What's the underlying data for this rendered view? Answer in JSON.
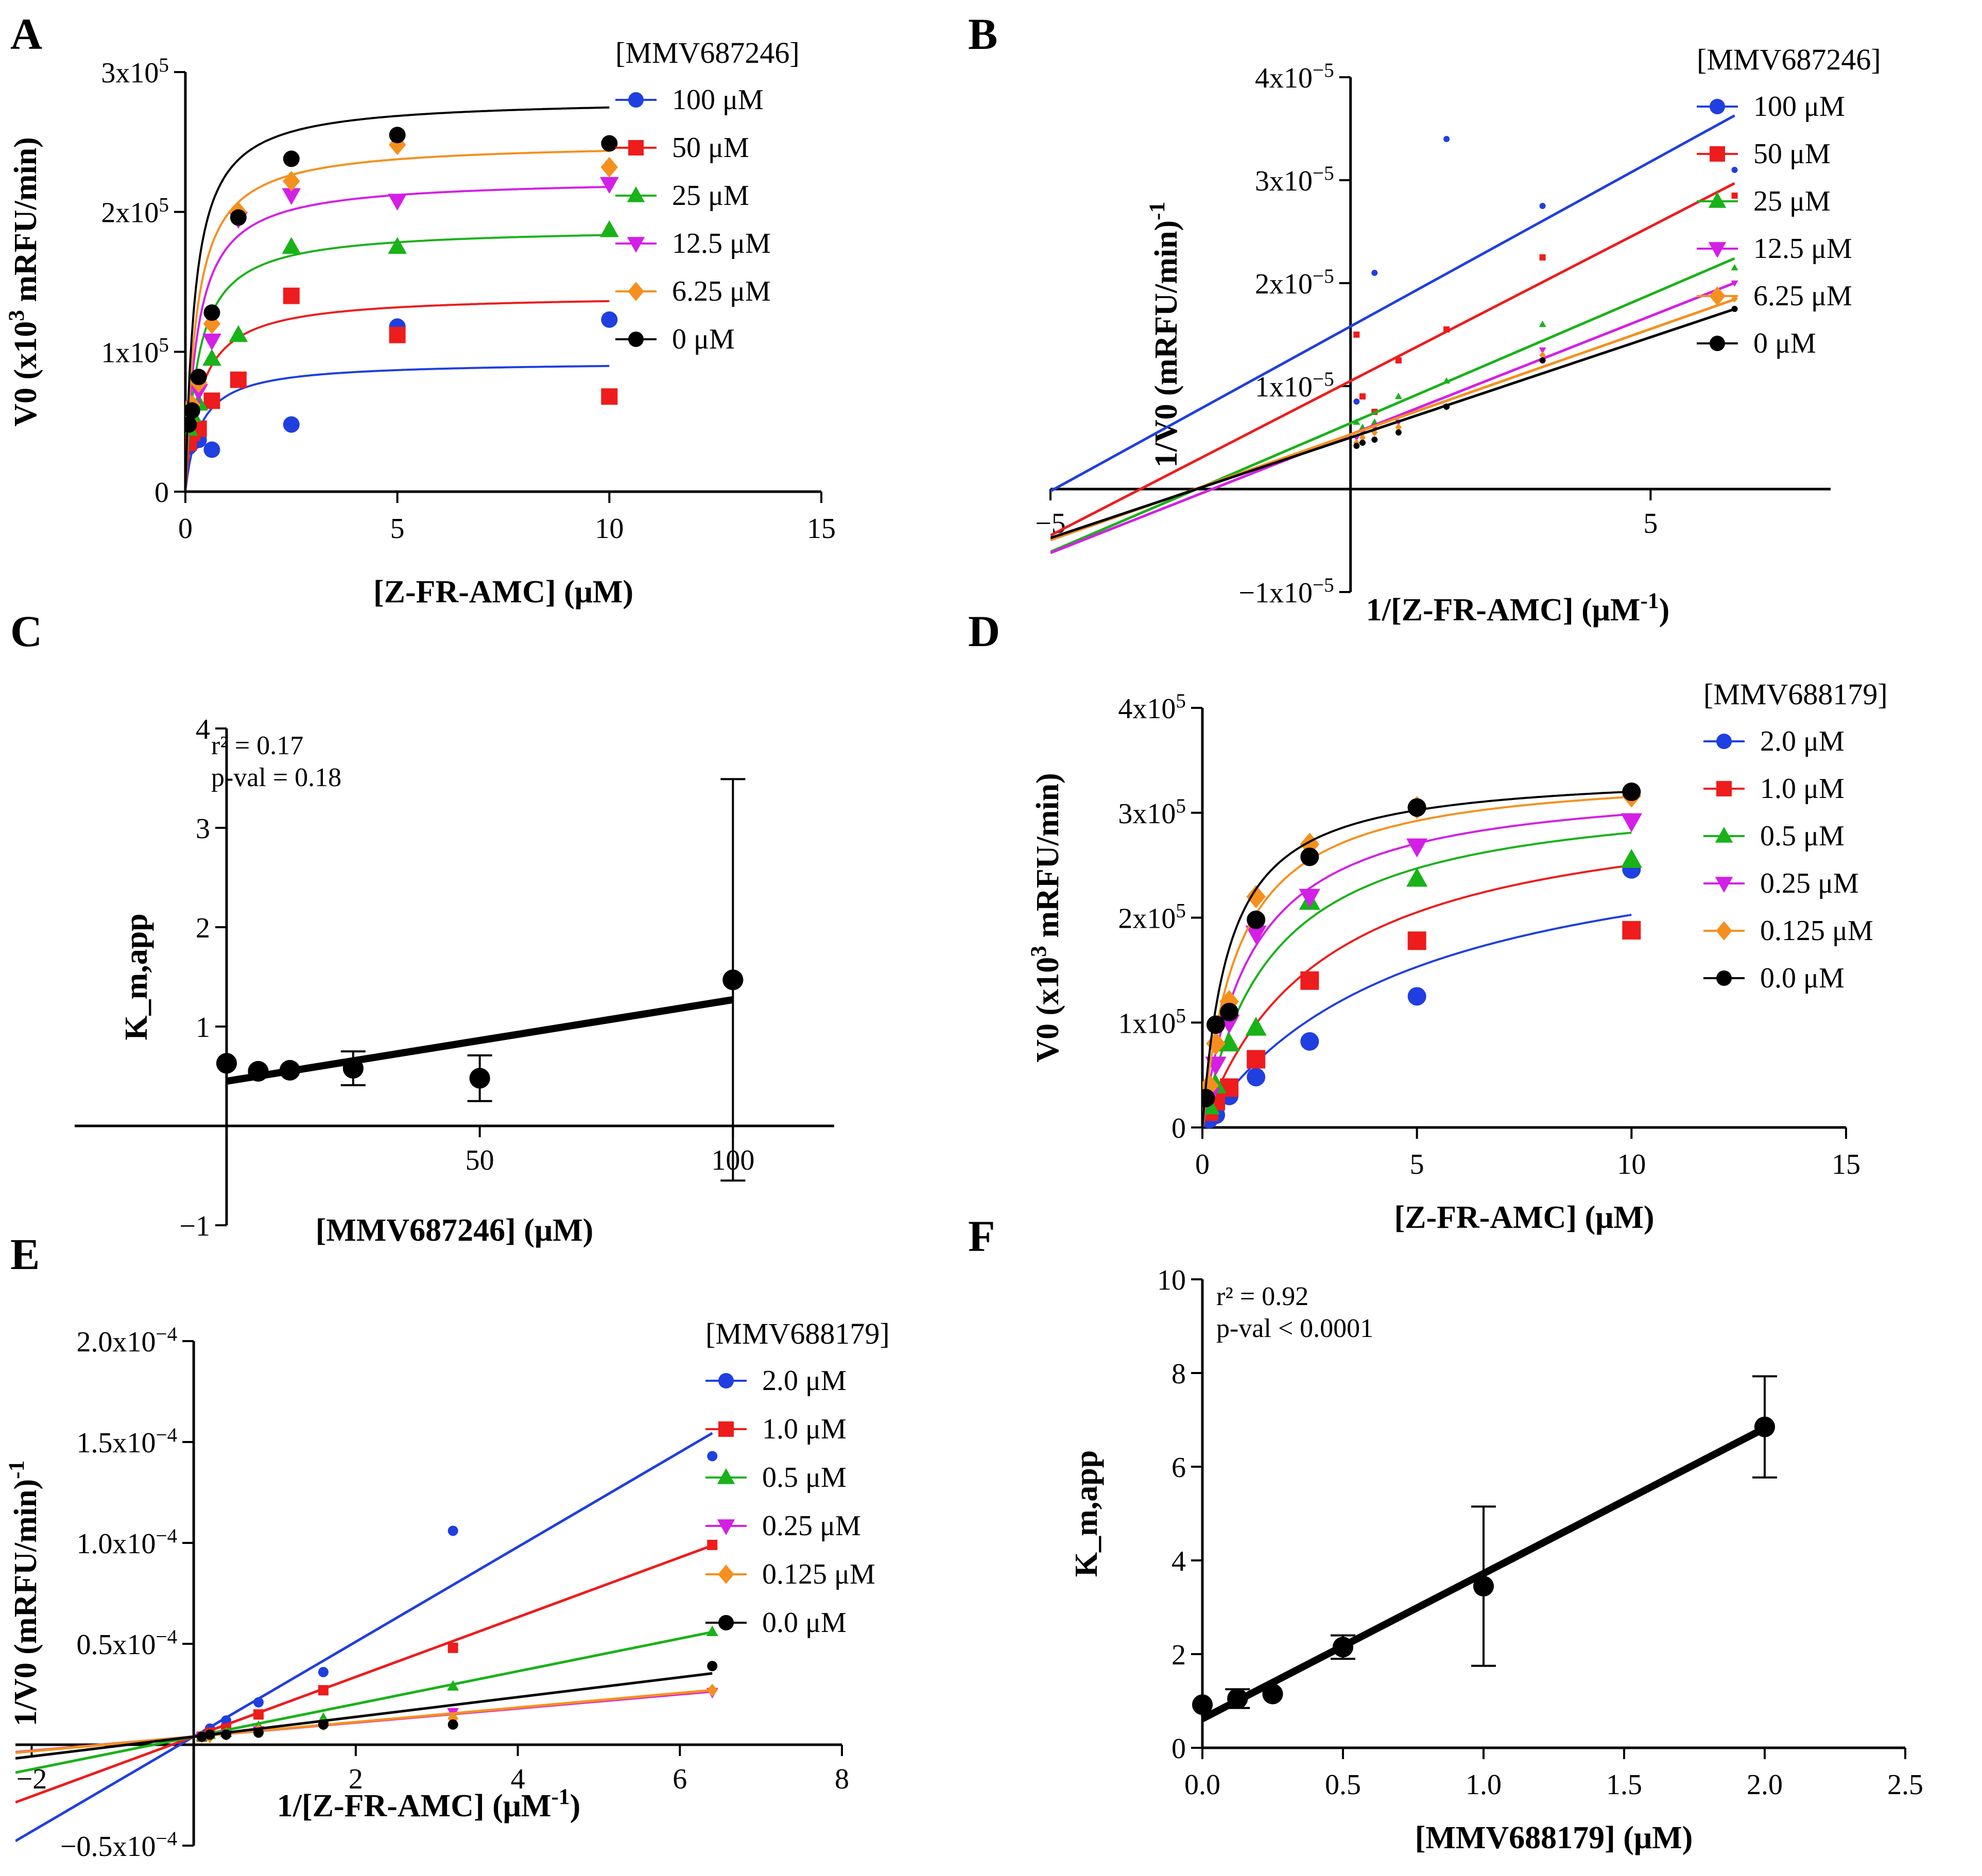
{
  "panels": [
    {
      "label": "A",
      "chart_data": {
        "type": "scatter",
        "title": "",
        "xlabel": "[Z-FR-AMC] (μM)",
        "ylabel": "V0 (x10^3 mRFU/min)",
        "xlim": [
          0,
          15
        ],
        "ylim": [
          0,
          300000
        ],
        "xticks": [
          0,
          5,
          10,
          15
        ],
        "xticklabels": [
          "0",
          "5",
          "10",
          "15"
        ],
        "yticks": [
          0,
          100000,
          200000,
          300000
        ],
        "yticklabels": [
          "0",
          "1x10^5",
          "2x10^5",
          "3x10^5"
        ],
        "legend_title": "[MMV687246]",
        "fit": "michaelis-menten",
        "series": [
          {
            "name": "100 μM",
            "color": "#1f3fe0",
            "marker": "circle",
            "x": [
              0.078,
              0.156,
              0.3125,
              0.625,
              2.5,
              5,
              10
            ],
            "y": [
              32000,
              35000,
              37000,
              30000,
              48000,
              118000,
              123000
            ],
            "vmax": 93000,
            "km": 0.35
          },
          {
            "name": "50 μM",
            "color": "#ee1c1c",
            "marker": "square",
            "x": [
              0.078,
              0.156,
              0.3125,
              0.625,
              1.25,
              2.5,
              5,
              10
            ],
            "y": [
              35000,
              42000,
              45000,
              65000,
              80000,
              140000,
              112000,
              68000
            ],
            "vmax": 141000,
            "km": 0.35
          },
          {
            "name": "25 μM",
            "color": "#19b219",
            "marker": "triangle-up",
            "x": [
              0.078,
              0.156,
              0.3125,
              0.625,
              1.25,
              2.5,
              5,
              10
            ],
            "y": [
              45000,
              55000,
              63000,
              95000,
              112000,
              175000,
              175000,
              187000
            ],
            "vmax": 189000,
            "km": 0.3
          },
          {
            "name": "12.5 μM",
            "color": "#d41fe6",
            "marker": "triangle-down",
            "x": [
              0.078,
              0.156,
              0.3125,
              0.625,
              1.25,
              2.5,
              5,
              10
            ],
            "y": [
              55000,
              60000,
              72000,
              108000,
              195000,
              212000,
              208000,
              220000
            ],
            "vmax": 224000,
            "km": 0.28
          },
          {
            "name": "6.25 μM",
            "color": "#f5901e",
            "marker": "diamond",
            "x": [
              0.078,
              0.156,
              0.3125,
              0.625,
              1.25,
              2.5,
              5,
              10
            ],
            "y": [
              50000,
              62000,
              78000,
              120000,
              200000,
              222000,
              248000,
              232000
            ],
            "vmax": 250000,
            "km": 0.26
          },
          {
            "name": "0 μM",
            "color": "#000000",
            "marker": "circle",
            "x": [
              0.078,
              0.156,
              0.3125,
              0.625,
              1.25,
              2.5,
              5,
              10
            ],
            "y": [
              48000,
              58000,
              82000,
              128000,
              196000,
              238000,
              255000,
              249000
            ],
            "vmax": 281000,
            "km": 0.23
          }
        ]
      }
    },
    {
      "label": "B",
      "chart_data": {
        "type": "scatter",
        "title": "",
        "xlabel": "1/[Z-FR-AMC] (μM^-1)",
        "ylabel": "1/V0 (mRFU/min)^-1",
        "xlim": [
          -5,
          8
        ],
        "ylim": [
          -1e-05,
          4e-05
        ],
        "xticks": [
          -5,
          5
        ],
        "xticklabels": [
          "−5",
          "5"
        ],
        "yticks": [
          -1e-05,
          1e-05,
          2e-05,
          3e-05,
          4e-05
        ],
        "yticklabels": [
          "−1x10^−5",
          "1x10^−5",
          "2x10^−5",
          "3x10^−5",
          "4x10^−5"
        ],
        "legend_title": "[MMV687246]",
        "fit": "linear",
        "series": [
          {
            "name": "100 μM",
            "color": "#1f3fe0",
            "marker": "circle",
            "x": [
              0.1,
              0.2,
              0.4,
              1.6,
              3.2,
              6.4
            ],
            "y": [
              8.5e-06,
              9e-06,
              2.1e-05,
              3.4e-05,
              2.75e-05,
              3.1e-05
            ],
            "slope": 3.2e-06,
            "intercept": 1.58e-05
          },
          {
            "name": "50 μM",
            "color": "#ee1c1c",
            "marker": "square",
            "x": [
              0.1,
              0.2,
              0.4,
              0.8,
              1.6,
              3.2,
              6.4
            ],
            "y": [
              1.5e-05,
              9e-06,
              7.5e-06,
              1.25e-05,
              1.55e-05,
              2.25e-05,
              2.85e-05
            ],
            "slope": 3e-06,
            "intercept": 1.05e-05
          },
          {
            "name": "25 μM",
            "color": "#19b219",
            "marker": "triangle-up",
            "x": [
              0.1,
              0.2,
              0.4,
              0.8,
              1.6,
              3.2,
              6.4
            ],
            "y": [
              6.5e-06,
              6e-06,
              6.5e-06,
              9e-06,
              1.05e-05,
              1.6e-05,
              2.15e-05
            ],
            "slope": 2.5e-06,
            "intercept": 6.4e-06
          },
          {
            "name": "12.5 μM",
            "color": "#d41fe6",
            "marker": "triangle-down",
            "x": [
              0.1,
              0.2,
              0.4,
              0.8,
              1.6,
              3.2,
              6.4
            ],
            "y": [
              5e-06,
              5.5e-06,
              6e-06,
              6.5e-06,
              8e-06,
              1.35e-05,
              2e-05
            ],
            "slope": 2.3e-06,
            "intercept": 5.3e-06
          },
          {
            "name": "6.25 μM",
            "color": "#f5901e",
            "marker": "diamond",
            "x": [
              0.1,
              0.2,
              0.4,
              0.8,
              1.6,
              3.2,
              6.4
            ],
            "y": [
              4.5e-06,
              5e-06,
              5.5e-06,
              6e-06,
              8e-06,
              1.3e-05,
              1.85e-05
            ],
            "slope": 2.05e-06,
            "intercept": 5.3e-06
          },
          {
            "name": "0 μM",
            "color": "#000000",
            "marker": "circle",
            "x": [
              0.1,
              0.2,
              0.4,
              0.8,
              1.6,
              3.2,
              6.4
            ],
            "y": [
              4.2e-06,
              4.5e-06,
              4.8e-06,
              5.5e-06,
              8e-06,
              1.25e-05,
              1.75e-05
            ],
            "slope": 1.95e-06,
            "intercept": 5e-06
          }
        ]
      }
    },
    {
      "label": "C",
      "chart_data": {
        "type": "scatter",
        "title": "",
        "xlabel": "[MMV687246] (μM)",
        "ylabel": "K_m,app",
        "xlim": [
          -30,
          120
        ],
        "ylim": [
          -1,
          4
        ],
        "xticks": [
          50,
          100
        ],
        "xticklabels": [
          "50",
          "100"
        ],
        "yticks": [
          -1,
          1,
          2,
          3,
          4
        ],
        "yticklabels": [
          "−1",
          "1",
          "2",
          "3",
          "4"
        ],
        "stats": {
          "r2": "r² = 0.17",
          "pval": "p-val = 0.18"
        },
        "fit": {
          "slope": 0.0082,
          "intercept": 0.45,
          "x_range": [
            0,
            100
          ]
        },
        "series": [
          {
            "name": "Km,app",
            "color": "#000000",
            "marker": "circle",
            "x": [
              0,
              6.25,
              12.5,
              25,
              50,
              100
            ],
            "y": [
              0.63,
              0.55,
              0.56,
              0.58,
              0.48,
              1.47
            ],
            "err": [
              0,
              0,
              0,
              0.17,
              0.23,
              2.02
            ]
          }
        ]
      }
    },
    {
      "label": "D",
      "chart_data": {
        "type": "scatter",
        "title": "",
        "xlabel": "[Z-FR-AMC] (μM)",
        "ylabel": "V0 (x10^3 mRFU/min)",
        "xlim": [
          0,
          15
        ],
        "ylim": [
          0,
          400000
        ],
        "xticks": [
          0,
          5,
          10,
          15
        ],
        "xticklabels": [
          "0",
          "5",
          "10",
          "15"
        ],
        "yticks": [
          0,
          100000,
          200000,
          300000,
          400000
        ],
        "yticklabels": [
          "0",
          "1x10^5",
          "2x10^5",
          "3x10^5",
          "4x10^5"
        ],
        "legend_title": "[MMV688179]",
        "fit": "michaelis-menten",
        "series": [
          {
            "name": "2.0 μM",
            "color": "#1f3fe0",
            "marker": "circle",
            "x": [
              0.156,
              0.3125,
              0.625,
              1.25,
              2.5,
              5,
              10
            ],
            "y": [
              8000,
              12000,
              30000,
              48000,
              82000,
              125000,
              246000
            ],
            "vmax": 300000,
            "km": 4.8
          },
          {
            "name": "1.0 μM",
            "color": "#ee1c1c",
            "marker": "square",
            "x": [
              0.156,
              0.3125,
              0.625,
              1.25,
              2.5,
              5,
              10
            ],
            "y": [
              15000,
              25000,
              38000,
              65000,
              140000,
              178000,
              188000
            ],
            "vmax": 320000,
            "km": 2.8
          },
          {
            "name": "0.5 μM",
            "color": "#19b219",
            "marker": "triangle-up",
            "x": [
              0.156,
              0.3125,
              0.625,
              1.25,
              2.5,
              5,
              10
            ],
            "y": [
              20000,
              40000,
              80000,
              95000,
              215000,
              237000,
              255000
            ],
            "vmax": 326000,
            "km": 1.6
          },
          {
            "name": "0.25 μM",
            "color": "#d41fe6",
            "marker": "triangle-down",
            "x": [
              0.156,
              0.3125,
              0.625,
              1.25,
              2.5,
              5,
              10
            ],
            "y": [
              30000,
              60000,
              100000,
              185000,
              220000,
              268000,
              292000
            ],
            "vmax": 333000,
            "km": 1.15
          },
          {
            "name": "0.125 μM",
            "color": "#f5901e",
            "marker": "diamond",
            "x": [
              0.156,
              0.3125,
              0.625,
              1.25,
              2.5,
              5,
              10
            ],
            "y": [
              40000,
              80000,
              120000,
              220000,
              270000,
              305000,
              316000
            ],
            "vmax": 342000,
            "km": 0.85
          },
          {
            "name": "0.0 μM",
            "color": "#000000",
            "marker": "circle",
            "x": [
              0.078,
              0.3125,
              0.625,
              1.25,
              2.5,
              5,
              10
            ],
            "y": [
              28000,
              98000,
              110000,
              198000,
              258000,
              305000,
              320000
            ],
            "vmax": 340000,
            "km": 0.62
          }
        ]
      }
    },
    {
      "label": "E",
      "chart_data": {
        "type": "scatter",
        "title": "",
        "xlabel": "1/[Z-FR-AMC] (μM^-1)",
        "ylabel": "1/V0 (mRFU/min)^-1",
        "xlim": [
          -2.2,
          8
        ],
        "ylim": [
          -5e-05,
          0.0002
        ],
        "xticks": [
          -2,
          2,
          4,
          6,
          8
        ],
        "xticklabels": [
          "−2",
          "2",
          "4",
          "6",
          "8"
        ],
        "yticks": [
          -5e-05,
          5e-05,
          0.0001,
          0.00015,
          0.0002
        ],
        "yticklabels": [
          "−0.5x10^−4",
          "0.5x10^−4",
          "1.0x10^−4",
          "1.5x10^−4",
          "2.0x10^−4"
        ],
        "legend_title": "[MMV688179]",
        "fit": "linear",
        "series": [
          {
            "name": "2.0 μM",
            "color": "#1f3fe0",
            "marker": "circle",
            "x": [
              0.1,
              0.2,
              0.4,
              0.8,
              1.6,
              3.2,
              6.4
            ],
            "y": [
              4e-06,
              8e-06,
              1.2e-05,
              2.1e-05,
              3.6e-05,
              0.000106,
              0.000143
            ],
            "slope": 2.35e-05,
            "intercept": 4e-06
          },
          {
            "name": "1.0 μM",
            "color": "#ee1c1c",
            "marker": "square",
            "x": [
              0.1,
              0.2,
              0.4,
              0.8,
              1.6,
              3.2,
              6.4
            ],
            "y": [
              4e-06,
              6e-06,
              8e-06,
              1.5e-05,
              2.7e-05,
              4.8e-05,
              9.9e-05
            ],
            "slope": 1.48e-05,
            "intercept": 4e-06
          },
          {
            "name": "0.5 μM",
            "color": "#19b219",
            "marker": "triangle-up",
            "x": [
              0.1,
              0.2,
              0.4,
              0.8,
              1.6,
              3.2,
              6.4
            ],
            "y": [
              4e-06,
              5e-06,
              6e-06,
              9e-06,
              1.3e-05,
              2.9e-05,
              5.6e-05
            ],
            "slope": 8.1e-06,
            "intercept": 4e-06
          },
          {
            "name": "0.25 μM",
            "color": "#d41fe6",
            "marker": "triangle-down",
            "x": [
              0.1,
              0.2,
              0.4,
              0.8,
              1.6,
              3.2,
              6.4
            ],
            "y": [
              4e-06,
              4e-06,
              5e-06,
              7e-06,
              1e-05,
              1.6e-05,
              2.6e-05
            ],
            "slope": 3.5e-06,
            "intercept": 4e-06
          },
          {
            "name": "0.125 μM",
            "color": "#f5901e",
            "marker": "diamond",
            "x": [
              0.1,
              0.2,
              0.4,
              0.8,
              1.6,
              3.2,
              6.4
            ],
            "y": [
              4e-06,
              4e-06,
              5e-06,
              7e-06,
              1e-05,
              1.3e-05,
              2.7e-05
            ],
            "slope": 3.6e-06,
            "intercept": 4e-06
          },
          {
            "name": "0.0 μM",
            "color": "#000000",
            "marker": "circle",
            "x": [
              0.1,
              0.2,
              0.4,
              0.8,
              1.6,
              3.2,
              6.4
            ],
            "y": [
              4e-06,
              5e-06,
              5e-06,
              6e-06,
              1e-05,
              1e-05,
              3.9e-05
            ],
            "slope": 4.9e-06,
            "intercept": 4e-06
          }
        ]
      }
    },
    {
      "label": "F",
      "chart_data": {
        "type": "scatter",
        "title": "",
        "xlabel": "[MMV688179] (μM)",
        "ylabel": "K_m,app",
        "xlim": [
          0,
          2.5
        ],
        "ylim": [
          0,
          10
        ],
        "xticks": [
          0,
          0.5,
          1,
          1.5,
          2,
          2.5
        ],
        "xticklabels": [
          "0.0",
          "0.5",
          "1.0",
          "1.5",
          "2.0",
          "2.5"
        ],
        "yticks": [
          0,
          2,
          4,
          6,
          8,
          10
        ],
        "yticklabels": [
          "0",
          "2",
          "4",
          "6",
          "8",
          "10"
        ],
        "stats": {
          "r2": "r² = 0.92",
          "pval": "p-val < 0.0001"
        },
        "fit": {
          "slope": 3.1,
          "intercept": 0.62,
          "x_range": [
            0,
            2
          ]
        },
        "series": [
          {
            "name": "Km,app",
            "color": "#000000",
            "marker": "circle",
            "x": [
              0,
              0.125,
              0.25,
              0.5,
              1,
              2
            ],
            "y": [
              0.92,
              1.05,
              1.15,
              2.15,
              3.45,
              6.85
            ],
            "err": [
              0,
              0.2,
              0,
              0.25,
              1.7,
              1.08
            ]
          }
        ]
      }
    }
  ]
}
